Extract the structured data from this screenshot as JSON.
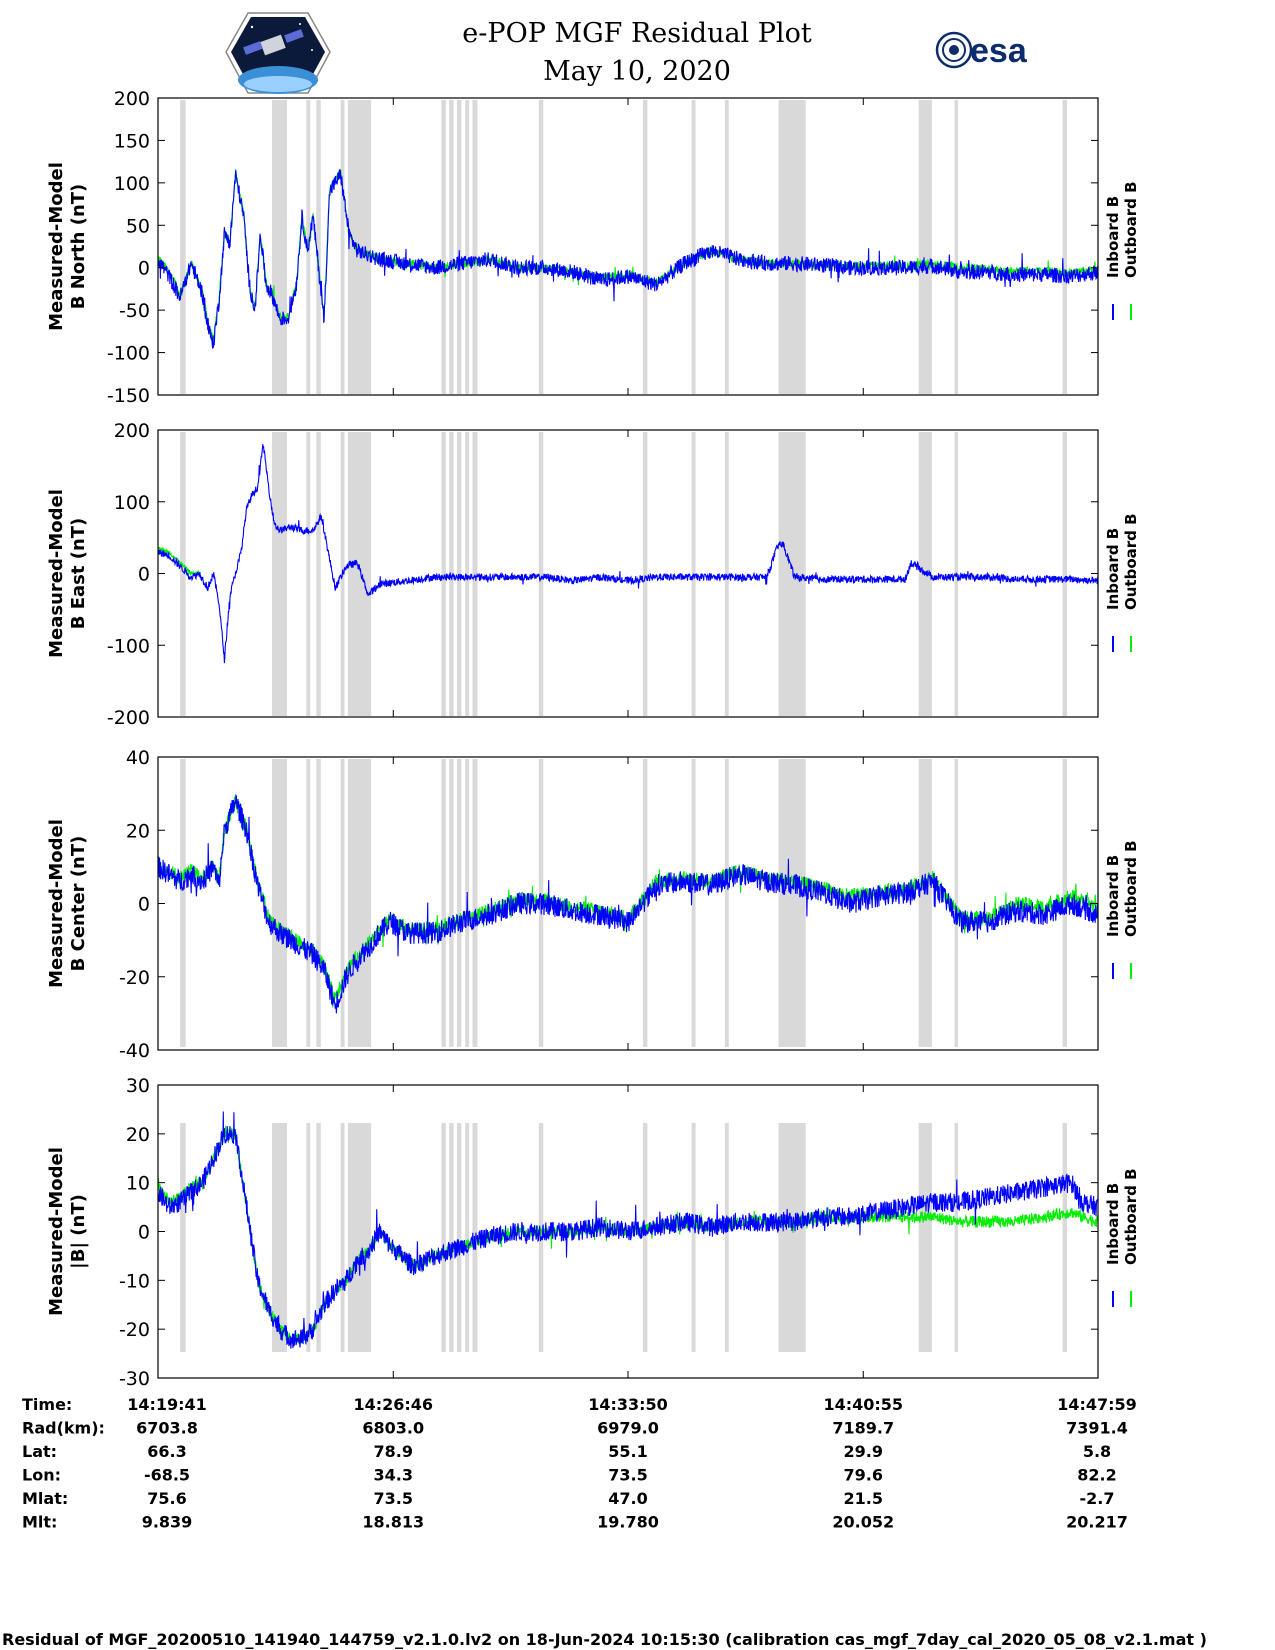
{
  "title": "e-POP MGF Residual Plot",
  "subtitle": "May 10, 2020",
  "logos": {
    "left": "satellite-mission-logo",
    "right": "esa"
  },
  "footer": "Residual of MGF_20200510_141940_144759_v2.1.0.lv2 on 18-Jun-2024 10:15:30 (calibration cas_mgf_7day_cal_2020_05_08_v2.1.mat )",
  "colors": {
    "inboard": "#0000ff",
    "outboard": "#00ee00",
    "gaps": "#d9d9d9"
  },
  "info_table": {
    "rows": [
      {
        "label": "Time:",
        "values": [
          "14:19:41",
          "14:26:46",
          "14:33:50",
          "14:40:55",
          "14:47:59"
        ]
      },
      {
        "label": "Rad(km):",
        "values": [
          "6703.8",
          "6803.0",
          "6979.0",
          "7189.7",
          "7391.4"
        ]
      },
      {
        "label": "Lat:",
        "values": [
          "66.3",
          "78.9",
          "55.1",
          "29.9",
          "5.8"
        ]
      },
      {
        "label": "Lon:",
        "values": [
          "-68.5",
          "34.3",
          "73.5",
          "79.6",
          "82.2"
        ]
      },
      {
        "label": "Mlat:",
        "values": [
          "75.6",
          "73.5",
          "47.0",
          "21.5",
          "-2.7"
        ]
      },
      {
        "label": "Mlt:",
        "values": [
          "9.839",
          "18.813",
          "19.780",
          "20.052",
          "20.217"
        ]
      }
    ]
  },
  "chart_data": [
    {
      "type": "line",
      "ylabel": [
        "Measured-Model",
        "B North (nT)"
      ],
      "ylim": [
        -150,
        200
      ],
      "yticks": [
        -150,
        -100,
        -50,
        0,
        50,
        100,
        150,
        200
      ],
      "xlim": [
        0,
        1698
      ],
      "xticks": [
        0,
        425,
        849,
        1274,
        1698
      ],
      "legend": [
        "Inboard B",
        "Outboard B"
      ],
      "legend_position": "right",
      "series": [
        {
          "name": "Inboard B",
          "color": "#0000ff",
          "noise": 9,
          "x": [
            0,
            20,
            40,
            60,
            80,
            90,
            100,
            110,
            120,
            130,
            140,
            155,
            165,
            175,
            185,
            195,
            205,
            220,
            235,
            250,
            260,
            270,
            280,
            290,
            300,
            310,
            330,
            345,
            360,
            380,
            400,
            450,
            500,
            550,
            600,
            650,
            700,
            750,
            800,
            850,
            900,
            950,
            1000,
            1050,
            1100,
            1150,
            1200,
            1250,
            1300,
            1350,
            1400,
            1450,
            1500,
            1550,
            1600,
            1650,
            1698
          ],
          "y": [
            10,
            -10,
            -35,
            5,
            -30,
            -70,
            -90,
            -40,
            40,
            30,
            110,
            60,
            -20,
            -50,
            40,
            -20,
            -30,
            -60,
            -60,
            -20,
            60,
            20,
            60,
            0,
            -60,
            90,
            110,
            40,
            20,
            15,
            10,
            5,
            0,
            5,
            10,
            0,
            0,
            -5,
            -15,
            -10,
            -20,
            5,
            20,
            10,
            5,
            5,
            3,
            0,
            0,
            0,
            2,
            -5,
            -5,
            -8,
            -8,
            -10,
            -5
          ]
        },
        {
          "name": "Outboard B",
          "color": "#00ee00",
          "noise": 5,
          "x": [
            0,
            20,
            40,
            60,
            80,
            90,
            100,
            110,
            120,
            130,
            140,
            155,
            165,
            175,
            185,
            195,
            205,
            220,
            235,
            250,
            260,
            270,
            280,
            290,
            300,
            310,
            330,
            345,
            360,
            380,
            400,
            450,
            500,
            550,
            600,
            650,
            700,
            750,
            800,
            850,
            900,
            950,
            1000,
            1050,
            1100,
            1150,
            1200,
            1250,
            1300,
            1350,
            1400,
            1450,
            1500,
            1550,
            1600,
            1650,
            1698
          ],
          "y": [
            12,
            -5,
            -30,
            5,
            -28,
            -65,
            -85,
            -38,
            40,
            32,
            112,
            62,
            -18,
            -48,
            40,
            -18,
            -28,
            -58,
            -58,
            -18,
            62,
            22,
            62,
            2,
            -58,
            92,
            112,
            40,
            20,
            15,
            10,
            5,
            0,
            5,
            10,
            0,
            0,
            -5,
            -12,
            -8,
            -18,
            5,
            20,
            10,
            5,
            5,
            3,
            2,
            2,
            2,
            4,
            0,
            -2,
            -4,
            -4,
            -6,
            -3
          ]
        }
      ]
    },
    {
      "type": "line",
      "ylabel": [
        "Measured-Model",
        "B East (nT)"
      ],
      "ylim": [
        -200,
        200
      ],
      "yticks": [
        -200,
        -100,
        0,
        100,
        200
      ],
      "xlim": [
        0,
        1698
      ],
      "xticks": [
        0,
        425,
        849,
        1274,
        1698
      ],
      "legend": [
        "Inboard B",
        "Outboard B"
      ],
      "legend_position": "right",
      "series": [
        {
          "name": "Inboard B",
          "color": "#0000ff",
          "noise": 5,
          "x": [
            0,
            20,
            40,
            60,
            75,
            90,
            100,
            110,
            120,
            130,
            140,
            150,
            160,
            170,
            180,
            190,
            200,
            210,
            220,
            240,
            260,
            280,
            295,
            305,
            320,
            340,
            360,
            380,
            400,
            450,
            500,
            550,
            600,
            650,
            700,
            750,
            800,
            850,
            900,
            950,
            1000,
            1050,
            1100,
            1120,
            1130,
            1150,
            1200,
            1250,
            1300,
            1350,
            1360,
            1400,
            1450,
            1500,
            1550,
            1600,
            1650,
            1698
          ],
          "y": [
            30,
            25,
            10,
            -5,
            0,
            -20,
            0,
            -40,
            -120,
            -30,
            0,
            30,
            90,
            110,
            120,
            180,
            120,
            70,
            60,
            65,
            60,
            60,
            80,
            40,
            -20,
            10,
            15,
            -30,
            -15,
            -10,
            -5,
            -5,
            -5,
            -5,
            -5,
            -10,
            -5,
            -10,
            -5,
            -5,
            -5,
            -5,
            -5,
            40,
            40,
            -5,
            -8,
            -8,
            -8,
            -8,
            15,
            -5,
            -5,
            -5,
            -8,
            -8,
            -8,
            -10
          ]
        },
        {
          "name": "Outboard B",
          "color": "#00ee00",
          "noise": 3,
          "x": [
            0,
            20,
            40,
            60,
            75
          ],
          "y": [
            35,
            30,
            15,
            0,
            0
          ]
        }
      ]
    },
    {
      "type": "line",
      "ylabel": [
        "Measured-Model",
        "B Center (nT)"
      ],
      "ylim": [
        -40,
        40
      ],
      "yticks": [
        -40,
        -20,
        0,
        20,
        40
      ],
      "xlim": [
        0,
        1698
      ],
      "xticks": [
        0,
        425,
        849,
        1274,
        1698
      ],
      "legend": [
        "Inboard B",
        "Outboard B"
      ],
      "legend_position": "right",
      "series": [
        {
          "name": "Inboard B",
          "color": "#0000ff",
          "noise": 3,
          "x": [
            0,
            20,
            40,
            60,
            80,
            100,
            110,
            120,
            140,
            160,
            180,
            200,
            220,
            240,
            260,
            280,
            300,
            320,
            340,
            360,
            380,
            400,
            420,
            450,
            500,
            550,
            600,
            650,
            700,
            750,
            800,
            850,
            900,
            950,
            1000,
            1050,
            1100,
            1150,
            1200,
            1250,
            1300,
            1350,
            1400,
            1450,
            1500,
            1550,
            1600,
            1650,
            1698
          ],
          "y": [
            10,
            8,
            6,
            8,
            6,
            10,
            5,
            20,
            28,
            20,
            5,
            -5,
            -8,
            -10,
            -12,
            -14,
            -18,
            -28,
            -20,
            -15,
            -12,
            -8,
            -5,
            -8,
            -8,
            -5,
            -3,
            0,
            0,
            -2,
            -3,
            -5,
            5,
            6,
            5,
            8,
            6,
            5,
            3,
            0,
            2,
            3,
            6,
            -5,
            -5,
            -2,
            -3,
            0,
            -3
          ]
        },
        {
          "name": "Outboard B",
          "color": "#00ee00",
          "noise": 2,
          "x": [
            0,
            20,
            40,
            60,
            80,
            100,
            110,
            120,
            140,
            160,
            180,
            200,
            220,
            240,
            260,
            280,
            300,
            320,
            340,
            360,
            380,
            400,
            420,
            450,
            500,
            550,
            600,
            650,
            700,
            750,
            800,
            850,
            900,
            950,
            1000,
            1050,
            1100,
            1150,
            1200,
            1250,
            1300,
            1350,
            1400,
            1450,
            1500,
            1550,
            1600,
            1650,
            1698
          ],
          "y": [
            11,
            9,
            7,
            9,
            7,
            10,
            6,
            20,
            28,
            20,
            6,
            -4,
            -7,
            -9,
            -11,
            -13,
            -17,
            -26,
            -19,
            -14,
            -11,
            -7,
            -4,
            -7,
            -7,
            -4,
            -2,
            1,
            1,
            -1,
            -2,
            -4,
            6,
            7,
            6,
            9,
            7,
            6,
            4,
            2,
            3,
            4,
            7,
            -4,
            -4,
            0,
            -1,
            2,
            -1
          ]
        }
      ]
    },
    {
      "type": "line",
      "ylabel": [
        "Measured-Model",
        "|B| (nT)"
      ],
      "ylim": [
        -30,
        30
      ],
      "yticks": [
        -30,
        -20,
        -10,
        0,
        10,
        20,
        30
      ],
      "xlim": [
        0,
        1698
      ],
      "xticks": [
        0,
        425,
        849,
        1274,
        1698
      ],
      "legend": [
        "Inboard B",
        "Outboard B"
      ],
      "legend_position": "right",
      "series": [
        {
          "name": "Inboard B",
          "color": "#0000ff",
          "noise": 2,
          "x": [
            0,
            20,
            40,
            60,
            80,
            100,
            120,
            140,
            160,
            180,
            200,
            220,
            240,
            260,
            280,
            300,
            320,
            340,
            360,
            380,
            400,
            420,
            440,
            460,
            500,
            550,
            600,
            650,
            700,
            750,
            800,
            850,
            900,
            950,
            1000,
            1050,
            1100,
            1150,
            1200,
            1250,
            1300,
            1350,
            1400,
            1450,
            1500,
            1550,
            1600,
            1650,
            1670,
            1698
          ],
          "y": [
            8,
            5,
            6,
            8,
            10,
            15,
            20,
            20,
            5,
            -10,
            -16,
            -20,
            -22,
            -22,
            -20,
            -15,
            -12,
            -10,
            -6,
            -4,
            0,
            -3,
            -5,
            -7,
            -5,
            -3,
            -1,
            0,
            0,
            0,
            1,
            0,
            1,
            2,
            1,
            2,
            2,
            2,
            3,
            3,
            4,
            5,
            6,
            6,
            7,
            8,
            9,
            10,
            6,
            5
          ]
        },
        {
          "name": "Outboard B",
          "color": "#00ee00",
          "noise": 1.2,
          "x": [
            0,
            20,
            40,
            60,
            80,
            100,
            120,
            140,
            160,
            180,
            200,
            220,
            240,
            260,
            280,
            300,
            320,
            340,
            360,
            380,
            400,
            420,
            440,
            460,
            500,
            550,
            600,
            650,
            700,
            750,
            800,
            850,
            900,
            950,
            1000,
            1050,
            1100,
            1150,
            1200,
            1250,
            1300,
            1350,
            1400,
            1450,
            1500,
            1550,
            1600,
            1650,
            1670,
            1698
          ],
          "y": [
            10,
            6,
            7,
            9,
            10,
            15,
            20,
            20,
            5,
            -10,
            -16,
            -20,
            -22,
            -22,
            -20,
            -15,
            -12,
            -10,
            -6,
            -4,
            0,
            -3,
            -5,
            -7,
            -5,
            -3,
            -1,
            0,
            0,
            0,
            1,
            0,
            1,
            2,
            1,
            2,
            2,
            2,
            3,
            3,
            3,
            3,
            3,
            2,
            2,
            2,
            3,
            4,
            3,
            2
          ]
        }
      ]
    }
  ],
  "gap_bands": [
    [
      40,
      50
    ],
    [
      206,
      233
    ],
    [
      268,
      275
    ],
    [
      286,
      294
    ],
    [
      330,
      337
    ],
    [
      343,
      385
    ],
    [
      512,
      520
    ],
    [
      526,
      534
    ],
    [
      540,
      548
    ],
    [
      555,
      562
    ],
    [
      568,
      577
    ],
    [
      688,
      696
    ],
    [
      876,
      884
    ],
    [
      964,
      971
    ],
    [
      1024,
      1031
    ],
    [
      1121,
      1170
    ],
    [
      1374,
      1398
    ],
    [
      1439,
      1445
    ],
    [
      1634,
      1642
    ]
  ]
}
